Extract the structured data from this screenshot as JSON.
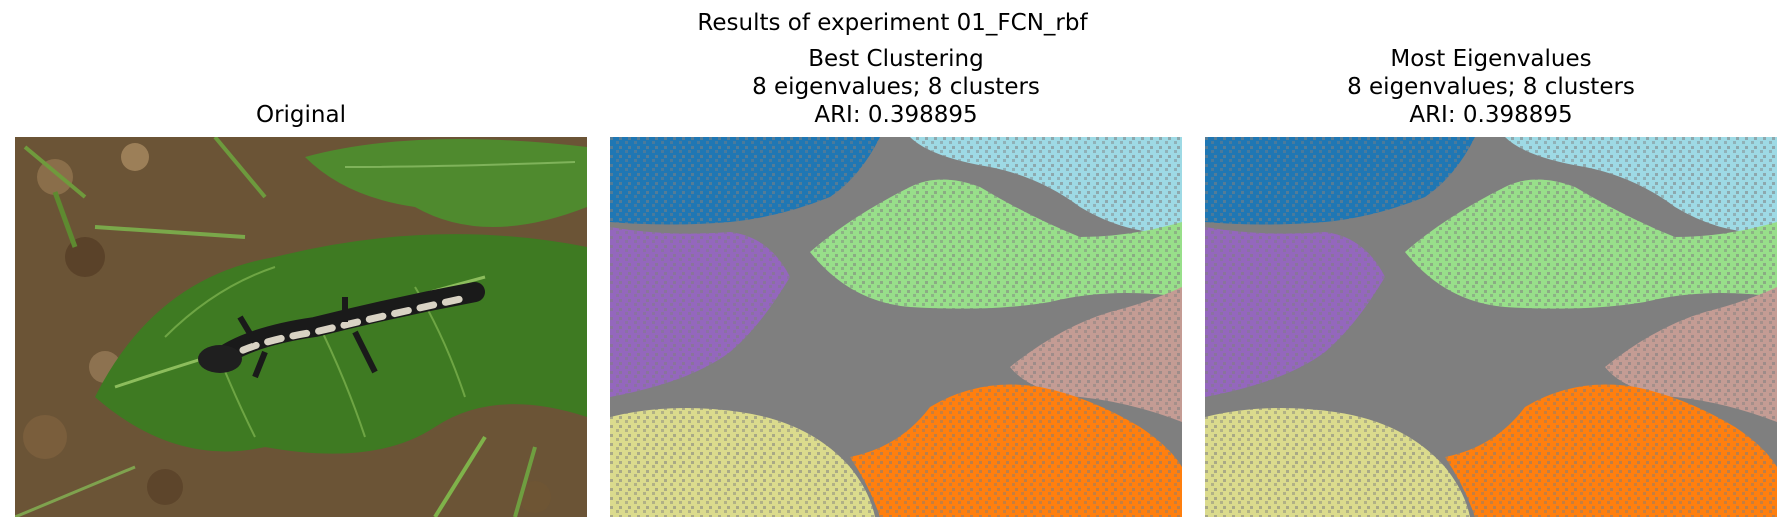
{
  "figure": {
    "suptitle": "Results of experiment 01_FCN_rbf"
  },
  "panels": [
    {
      "title_lines": [
        "Original"
      ]
    },
    {
      "title_lines": [
        "Best Clustering",
        "8 eigenvalues; 8 clusters",
        "ARI: 0.398895"
      ]
    },
    {
      "title_lines": [
        "Most Eigenvalues",
        "8 eigenvalues; 8 clusters",
        "ARI: 0.398895"
      ]
    }
  ],
  "cluster_colors": {
    "blue": "#1f77b4",
    "light_blue": "#9edae5",
    "gray": "#7f7f7f",
    "green": "#98df8a",
    "purple": "#9467bd",
    "pink_brown": "#c49c94",
    "olive": "#dbdb8d",
    "orange": "#ff7f0e"
  }
}
